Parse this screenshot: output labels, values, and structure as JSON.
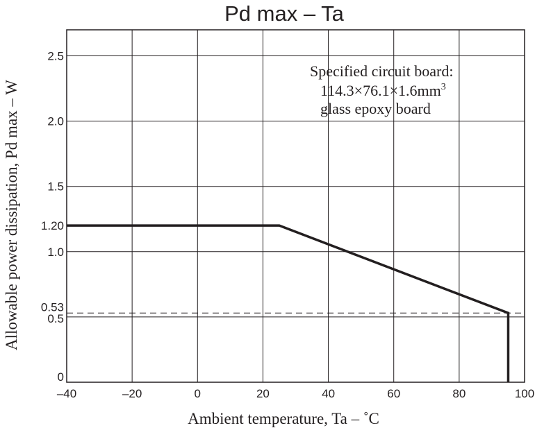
{
  "chart_data": {
    "type": "line",
    "title": "Pd max  –  Ta",
    "xlabel": "Ambient temperature, Ta  –  ˚C",
    "ylabel": "Allowable power dissipation, Pd max  –  W",
    "xlim": [
      -40,
      100
    ],
    "ylim": [
      0,
      2.7
    ],
    "x_ticks": [
      -40,
      -20,
      0,
      20,
      40,
      60,
      80,
      100
    ],
    "x_tick_labels": [
      "–40",
      "–20",
      "0",
      "20",
      "40",
      "60",
      "80",
      "100"
    ],
    "y_grid": [
      0,
      0.5,
      1.0,
      1.5,
      2.0,
      2.5
    ],
    "y_tick_labels": [
      {
        "value": 0,
        "label": "0"
      },
      {
        "value": 0.5,
        "label": "0.5"
      },
      {
        "value": 0.53,
        "label": "0.53"
      },
      {
        "value": 1.0,
        "label": "1.0"
      },
      {
        "value": 1.2,
        "label": "1.20"
      },
      {
        "value": 1.5,
        "label": "1.5"
      },
      {
        "value": 2.0,
        "label": "2.0"
      },
      {
        "value": 2.5,
        "label": "2.5"
      }
    ],
    "grid": true,
    "reference_line": {
      "y": 0.53,
      "style": "dashed"
    },
    "series": [
      {
        "x": [
          -40,
          25,
          95,
          95
        ],
        "y": [
          1.2,
          1.2,
          0.53,
          0
        ]
      }
    ],
    "annotation": {
      "line1": "Specified circuit board:",
      "line2": "114.3×76.1×1.6mm",
      "line2_sup": "3",
      "line3": "glass epoxy board",
      "placement": "top-right"
    },
    "colors": {
      "ink": "#231f20",
      "grid": "#231f20"
    }
  }
}
